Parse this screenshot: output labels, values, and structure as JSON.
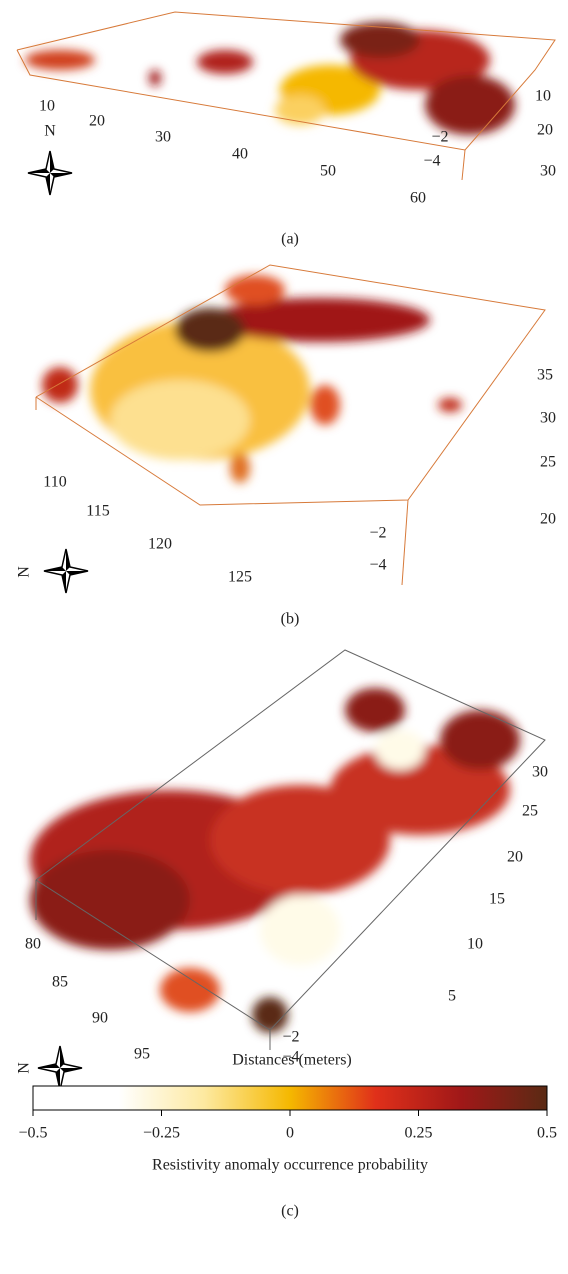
{
  "panels": [
    {
      "caption": "(a)",
      "north": "N",
      "ticks": [
        "10",
        "20",
        "30",
        "40",
        "50",
        "60",
        "10",
        "20",
        "30",
        "−2",
        "−4"
      ]
    },
    {
      "caption": "(b)",
      "north": "N",
      "ticks": [
        "110",
        "115",
        "120",
        "125",
        "35",
        "30",
        "25",
        "20",
        "−2",
        "−4"
      ]
    },
    {
      "caption": "(c)",
      "north": "N",
      "ticks": [
        "80",
        "85",
        "90",
        "95",
        "30",
        "25",
        "20",
        "15",
        "10",
        "5",
        "−2",
        "−4"
      ],
      "axis_title": "Distances (meters)"
    }
  ],
  "colorbar": {
    "lim": [
      -0.5,
      0.5
    ],
    "ticks": [
      {
        "value": -0.5,
        "label": "−0.5"
      },
      {
        "value": -0.25,
        "label": "−0.25"
      },
      0,
      0.25,
      0.5
    ],
    "label": "Resistivity anomaly occurrence probability",
    "colors": [
      "#ffffff",
      "#ffffff",
      "#fde9a0",
      "#f5b800",
      "#e0301a",
      "#a01818",
      "#5a2a14"
    ]
  }
}
